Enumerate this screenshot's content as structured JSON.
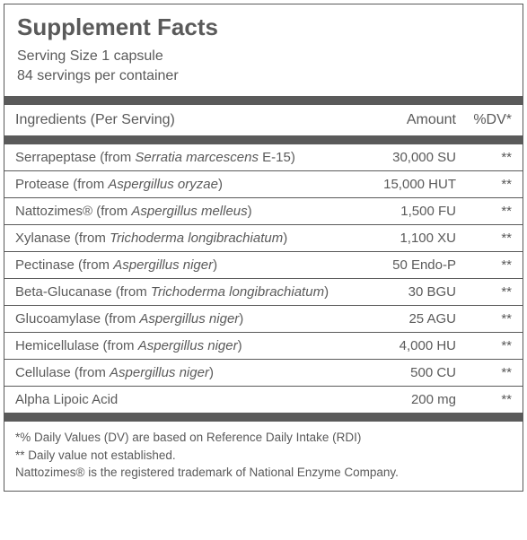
{
  "colors": {
    "text": "#5a5a5a",
    "border": "#5a5a5a",
    "bar": "#5a5a5a",
    "background": "#ffffff"
  },
  "typography": {
    "title_fontsize": 26,
    "body_fontsize": 15,
    "header_fontsize": 16,
    "footnote_fontsize": 13.5,
    "font_family": "Arial"
  },
  "title": "Supplement Facts",
  "serving_size": "Serving Size 1 capsule",
  "servings_per_container": "84 servings per container",
  "columns": {
    "ingredients": "Ingredients (Per Serving)",
    "amount": "Amount",
    "dv": "%DV*"
  },
  "rows": [
    {
      "name": "Serrapeptase",
      "source_prefix": " (from ",
      "source_italic": "Serratia marcescens",
      "source_suffix": " E-15)",
      "amount": "30,000 SU",
      "dv": "**"
    },
    {
      "name": "Protease",
      "source_prefix": " (from ",
      "source_italic": "Aspergillus oryzae",
      "source_suffix": ")",
      "amount": "15,000 HUT",
      "dv": "**"
    },
    {
      "name": "Nattozimes®",
      "source_prefix": " (from ",
      "source_italic": "Aspergillus melleus",
      "source_suffix": ")",
      "amount": "1,500 FU",
      "dv": "**"
    },
    {
      "name": "Xylanase",
      "source_prefix": " (from ",
      "source_italic": "Trichoderma longibrachiatum",
      "source_suffix": ")",
      "amount": "1,100 XU",
      "dv": "**"
    },
    {
      "name": "Pectinase",
      "source_prefix": " (from ",
      "source_italic": "Aspergillus niger",
      "source_suffix": ")",
      "amount": "50 Endo-P",
      "dv": "**"
    },
    {
      "name": "Beta-Glucanase",
      "source_prefix": " (from ",
      "source_italic": "Trichoderma longibrachiatum",
      "source_suffix": ")",
      "amount": "30 BGU",
      "dv": "**"
    },
    {
      "name": "Glucoamylase",
      "source_prefix": " (from ",
      "source_italic": "Aspergillus niger",
      "source_suffix": ")",
      "amount": "25 AGU",
      "dv": "**"
    },
    {
      "name": "Hemicellulase",
      "source_prefix": " (from ",
      "source_italic": "Aspergillus niger",
      "source_suffix": ")",
      "amount": "4,000 HU",
      "dv": "**"
    },
    {
      "name": "Cellulase",
      "source_prefix": " (from ",
      "source_italic": "Aspergillus niger",
      "source_suffix": ")",
      "amount": "500 CU",
      "dv": "**"
    },
    {
      "name": "Alpha Lipoic Acid",
      "source_prefix": "",
      "source_italic": "",
      "source_suffix": "",
      "amount": "200 mg",
      "dv": "**"
    }
  ],
  "footnotes": [
    "*% Daily Values (DV) are based on Reference Daily Intake (RDI)",
    "** Daily value not established.",
    "Nattozimes® is the registered trademark of National Enzyme Company."
  ]
}
